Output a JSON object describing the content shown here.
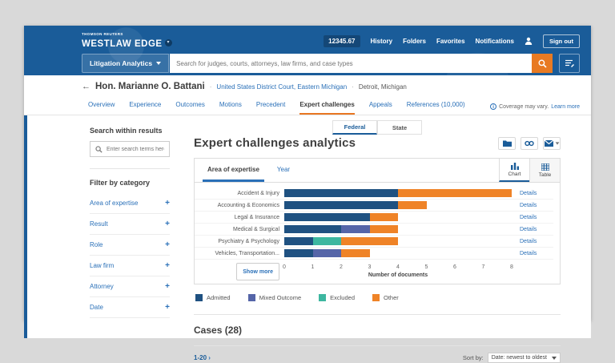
{
  "chrome": {
    "brand_small": "THOMSON REUTERS",
    "brand": "WESTLAW EDGE",
    "product_dropdown": "Litigation Analytics",
    "search_placeholder": "Search for judges, courts, attorneys, law firms, and case types",
    "client_id": "12345.67",
    "nav": {
      "history": "History",
      "folders": "Folders",
      "favorites": "Favorites",
      "notifications": "Notifications"
    },
    "sign_out": "Sign out"
  },
  "breadcrumb": {
    "judge": "Hon. Marianne O. Battani",
    "court": "United States District Court, Eastern Michigan",
    "location": "Detroit, Michigan"
  },
  "tabs": [
    {
      "label": "Overview"
    },
    {
      "label": "Experience"
    },
    {
      "label": "Outcomes"
    },
    {
      "label": "Motions"
    },
    {
      "label": "Precedent"
    },
    {
      "label": "Expert challenges"
    },
    {
      "label": "Appeals"
    },
    {
      "label": "References (10,000)"
    }
  ],
  "coverage": {
    "text": "Coverage may vary.",
    "link": "Learn more"
  },
  "sidebar": {
    "search_heading": "Search within results",
    "search_placeholder": "Enter search terms here...",
    "filter_heading": "Filter by category",
    "filters": [
      {
        "label": "Area of expertise"
      },
      {
        "label": "Result"
      },
      {
        "label": "Role"
      },
      {
        "label": "Law firm"
      },
      {
        "label": "Attorney"
      },
      {
        "label": "Date"
      }
    ]
  },
  "main": {
    "jurisdiction": {
      "federal": "Federal",
      "state": "State"
    },
    "title": "Expert challenges analytics",
    "panel_tabs": {
      "area": "Area of expertise",
      "year": "Year"
    },
    "view_toggle": {
      "chart": "Chart",
      "table": "Table"
    },
    "show_more": "Show more",
    "details_label": "Details",
    "cases_heading": "Cases (28)",
    "pagination": "1-20",
    "sort_label": "Sort by:",
    "sort_value": "Date: newest to oldest"
  },
  "chart_data": {
    "type": "bar",
    "orientation": "horizontal",
    "stacked": true,
    "categories": [
      "Accident & Injury",
      "Accounting & Economics",
      "Legal & Insurance",
      "Medical & Surgical",
      "Psychiatry & Psychology",
      "Vehicles, Transportation..."
    ],
    "series": [
      {
        "name": "Admitted",
        "color": "#1f5181",
        "values": [
          4,
          4,
          3,
          2,
          1,
          1
        ]
      },
      {
        "name": "Mixed Outcome",
        "color": "#5565a8",
        "values": [
          0,
          0,
          0,
          1,
          0,
          1
        ]
      },
      {
        "name": "Excluded",
        "color": "#3db7a0",
        "values": [
          0,
          0,
          0,
          0,
          1,
          0
        ]
      },
      {
        "name": "Other",
        "color": "#ef8327",
        "values": [
          4,
          1,
          1,
          1,
          2,
          1
        ]
      }
    ],
    "totals": [
      8,
      5,
      4,
      4,
      4,
      3
    ],
    "xlabel": "Number of documents",
    "xlim": [
      0,
      8
    ],
    "xticks": [
      0,
      1,
      2,
      3,
      4,
      5,
      6,
      7,
      8
    ],
    "legend_position": "bottom",
    "grid": false
  }
}
